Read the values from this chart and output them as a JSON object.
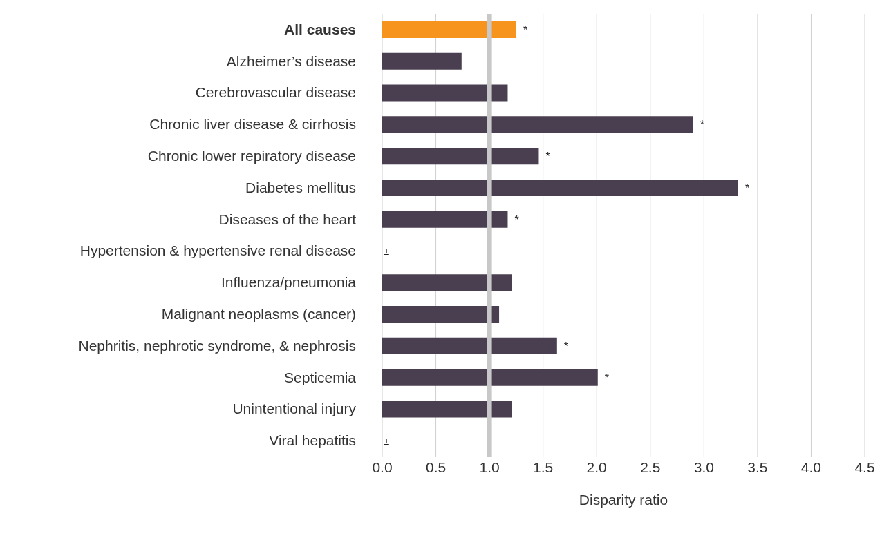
{
  "chart_data": {
    "type": "bar",
    "orientation": "horizontal",
    "xlabel": "Disparity ratio",
    "categories": [
      "All causes",
      "Alzheimer’s disease",
      "Cerebrovascular disease",
      "Chronic liver disease & cirrhosis",
      "Chronic lower repiratory disease",
      "Diabetes mellitus",
      "Diseases of the heart",
      "Hypertension & hypertensive renal disease",
      "Influenza/pneumonia",
      "Malignant neoplasms (cancer)",
      "Nephritis, nephrotic syndrome, & nephrosis",
      "Septicemia",
      "Unintentional injury",
      "Viral hepatitis"
    ],
    "values": [
      1.25,
      0.74,
      1.17,
      2.9,
      1.46,
      3.32,
      1.17,
      null,
      1.21,
      1.09,
      1.63,
      2.01,
      1.21,
      null
    ],
    "colors": [
      "#f7941d",
      "#4a3f51",
      "#4a3f51",
      "#4a3f51",
      "#4a3f51",
      "#4a3f51",
      "#4a3f51",
      "#4a3f51",
      "#4a3f51",
      "#4a3f51",
      "#4a3f51",
      "#4a3f51",
      "#4a3f51",
      "#4a3f51"
    ],
    "value_labels": [
      "*",
      null,
      null,
      "*",
      "*",
      "*",
      "*",
      "±",
      null,
      null,
      "*",
      "*",
      null,
      "±"
    ],
    "xlim": [
      0,
      4.5
    ],
    "xticks": [
      {
        "value": 0,
        "label": "0.0"
      },
      {
        "value": 0.5,
        "label": "0.5"
      },
      {
        "value": 1,
        "label": "1.0"
      },
      {
        "value": 1.5,
        "label": "1.5"
      },
      {
        "value": 2,
        "label": "2.0"
      },
      {
        "value": 2.5,
        "label": "2.5"
      },
      {
        "value": 3,
        "label": "3.0"
      },
      {
        "value": 3.5,
        "label": "3.5"
      },
      {
        "value": 4,
        "label": "4.0"
      },
      {
        "value": 4.5,
        "label": "4.5"
      }
    ],
    "ref_lines": [
      {
        "axis": "x",
        "value": 1,
        "color": "#c8c8c8"
      }
    ],
    "grid": "x",
    "legend": false
  }
}
